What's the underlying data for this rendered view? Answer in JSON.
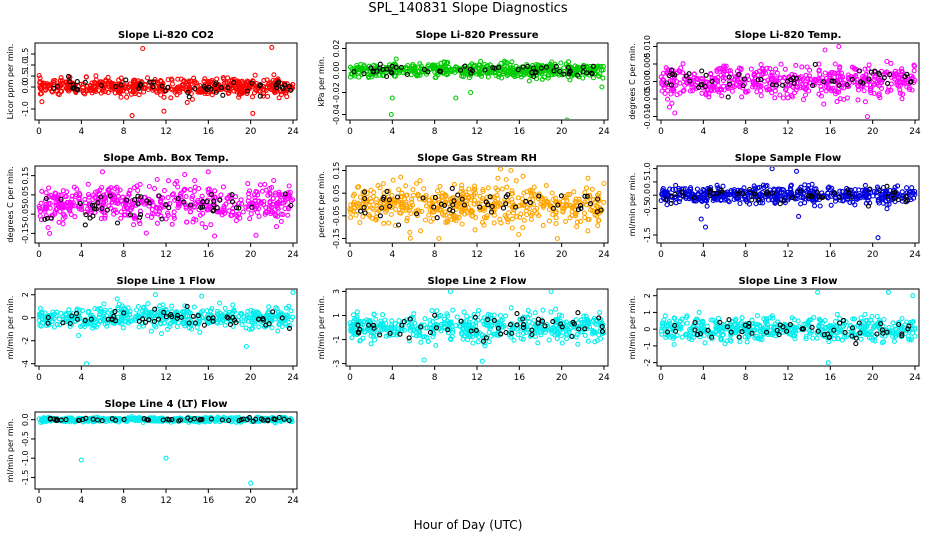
{
  "window": {
    "title": "SPL_140831  Slope Diagnostics",
    "x_axis_title": "Hour of Day (UTC)"
  },
  "chart_data": [
    {
      "type": "scatter",
      "title": "Slope Li-820 CO2",
      "ylabel": "Licor ppm per min.",
      "xlim": [
        0,
        24
      ],
      "ylim": [
        -1.5,
        2
      ],
      "yticks": [
        "-1.0",
        "0.0",
        "0.5",
        "1.0",
        "1.5"
      ],
      "ytickvals": [
        -1,
        0,
        0.5,
        1,
        1.5
      ],
      "xticks": [
        0,
        4,
        8,
        12,
        16,
        20,
        24
      ],
      "color": "#ff0000",
      "spread": 0.35,
      "outliers": [
        [
          9.8,
          1.75
        ],
        [
          22,
          1.8
        ],
        [
          11.8,
          -1.1
        ],
        [
          14,
          -0.7
        ],
        [
          8.8,
          -1.3
        ],
        [
          20.2,
          -1.2
        ]
      ]
    },
    {
      "type": "scatter",
      "title": "Slope Li-820 Pressure",
      "ylabel": "kPa per min.",
      "xlim": [
        0,
        24
      ],
      "ylim": [
        -0.045,
        0.025
      ],
      "yticks": [
        "-0.04",
        "-0.02",
        "0.00",
        "0.02"
      ],
      "ytickvals": [
        -0.04,
        -0.02,
        0,
        0.02
      ],
      "xticks": [
        0,
        4,
        8,
        12,
        16,
        20,
        24
      ],
      "color": "#00cc00",
      "spread": 0.006,
      "outliers": [
        [
          3.9,
          -0.04
        ],
        [
          4,
          -0.025
        ],
        [
          10,
          -0.025
        ],
        [
          11.4,
          -0.02
        ],
        [
          20.5,
          -0.045
        ],
        [
          23.8,
          -0.015
        ]
      ]
    },
    {
      "type": "scatter",
      "title": "Slope Li-820 Temp.",
      "ylabel": "degrees C per min.",
      "xlim": [
        0,
        24
      ],
      "ylim": [
        -0.011,
        0.011
      ],
      "yticks": [
        "-0.010",
        "-0.005",
        "0.000",
        "0.005",
        "0.010"
      ],
      "ytickvals": [
        -0.01,
        -0.005,
        0,
        0.005,
        0.01
      ],
      "xticks": [
        0,
        4,
        8,
        12,
        16,
        20,
        24
      ],
      "color": "#ff00ff",
      "spread": 0.004,
      "outliers": [
        [
          1.3,
          -0.009
        ],
        [
          16.8,
          0.01
        ],
        [
          19.5,
          -0.01
        ],
        [
          15.5,
          0.009
        ]
      ]
    },
    {
      "type": "scatter",
      "title": "Slope Amb. Box Temp.",
      "ylabel": "degrees C per min.",
      "xlim": [
        0,
        24
      ],
      "ylim": [
        -0.2,
        0.2
      ],
      "yticks": [
        "-0.15",
        "-0.05",
        "0.05",
        "0.15"
      ],
      "ytickvals": [
        -0.15,
        -0.05,
        0.05,
        0.15
      ],
      "xticks": [
        0,
        4,
        8,
        12,
        16,
        20,
        24
      ],
      "color": "#ff00ff",
      "spread": 0.09,
      "outliers": [
        [
          6,
          0.17
        ],
        [
          16,
          0.17
        ],
        [
          20.5,
          -0.16
        ],
        [
          1,
          -0.15
        ]
      ]
    },
    {
      "type": "scatter",
      "title": "Slope Gas Stream RH",
      "ylabel": "percent per min.",
      "xlim": [
        0,
        24
      ],
      "ylim": [
        -0.17,
        0.17
      ],
      "yticks": [
        "-0.15",
        "-0.05",
        "0.05",
        "0.15"
      ],
      "ytickvals": [
        -0.15,
        -0.05,
        0.05,
        0.15
      ],
      "xticks": [
        0,
        4,
        8,
        12,
        16,
        20,
        24
      ],
      "color": "#ffa500",
      "spread": 0.08,
      "outliers": [
        [
          15.2,
          0.15
        ],
        [
          8.4,
          -0.15
        ],
        [
          19.6,
          -0.15
        ]
      ]
    },
    {
      "type": "scatter",
      "title": "Slope Sample Flow",
      "ylabel": "ml/min per min.",
      "xlim": [
        0,
        24
      ],
      "ylim": [
        -1.8,
        1.1
      ],
      "yticks": [
        "-1.5",
        "-0.5",
        "0.0",
        "0.5",
        "1.0"
      ],
      "ytickvals": [
        -1.5,
        -0.5,
        0,
        0.5,
        1
      ],
      "xticks": [
        0,
        4,
        8,
        12,
        16,
        20,
        24
      ],
      "color": "#0000dd",
      "spread": 0.3,
      "outliers": [
        [
          20.5,
          -1.6
        ],
        [
          4.2,
          -1.2
        ],
        [
          3.8,
          -0.9
        ],
        [
          13,
          -0.8
        ],
        [
          10.5,
          1.0
        ],
        [
          12.8,
          0.9
        ]
      ]
    },
    {
      "type": "scatter",
      "title": "Slope Line 1 Flow",
      "ylabel": "ml/min per min.",
      "xlim": [
        0,
        24
      ],
      "ylim": [
        -4.2,
        2.5
      ],
      "yticks": [
        "-4",
        "-2",
        "0",
        "2"
      ],
      "ytickvals": [
        -4,
        -2,
        0,
        2
      ],
      "xticks": [
        0,
        4,
        8,
        12,
        16,
        20,
        24
      ],
      "color": "#00eeee",
      "spread": 0.9,
      "outliers": [
        [
          4.5,
          -4
        ],
        [
          24,
          2.2
        ],
        [
          11,
          2
        ],
        [
          19.6,
          -2.5
        ]
      ]
    },
    {
      "type": "scatter",
      "title": "Slope Line 2 Flow",
      "ylabel": "ml/min per min.",
      "xlim": [
        0,
        24
      ],
      "ylim": [
        -3.2,
        3.2
      ],
      "yticks": [
        "-3",
        "-1",
        "1",
        "3"
      ],
      "ytickvals": [
        -3,
        -1,
        1,
        3
      ],
      "xticks": [
        0,
        4,
        8,
        12,
        16,
        20,
        24
      ],
      "color": "#00eeee",
      "spread": 1.0,
      "outliers": [
        [
          9.5,
          3
        ],
        [
          19,
          3
        ],
        [
          12.5,
          -2.8
        ],
        [
          7,
          -2.7
        ]
      ]
    },
    {
      "type": "scatter",
      "title": "Slope Line 3 Flow",
      "ylabel": "ml/min per min.",
      "xlim": [
        0,
        24
      ],
      "ylim": [
        -2.2,
        2.4
      ],
      "yticks": [
        "-2",
        "-1",
        "0",
        "1",
        "2"
      ],
      "ytickvals": [
        -2,
        -1,
        0,
        1,
        2
      ],
      "xticks": [
        0,
        4,
        8,
        12,
        16,
        20,
        24
      ],
      "color": "#00eeee",
      "spread": 0.65,
      "outliers": [
        [
          14.8,
          2.2
        ],
        [
          15.8,
          -2
        ],
        [
          21.5,
          2.2
        ],
        [
          23.8,
          2.0
        ]
      ]
    },
    {
      "type": "scatter",
      "title": "Slope Line 4 (LT) Flow",
      "ylabel": "ml/min per min.",
      "xlim": [
        0,
        24
      ],
      "ylim": [
        -1.8,
        0.2
      ],
      "yticks": [
        "-1.5",
        "-1.0",
        "-0.5",
        "0.0"
      ],
      "ytickvals": [
        -1.5,
        -1,
        -0.5,
        0
      ],
      "xticks": [
        0,
        4,
        8,
        12,
        16,
        20,
        24
      ],
      "color": "#00eeee",
      "spread": 0.05,
      "outliers": [
        [
          4,
          -1.05
        ],
        [
          12,
          -1.0
        ],
        [
          20,
          -1.65
        ]
      ]
    }
  ]
}
